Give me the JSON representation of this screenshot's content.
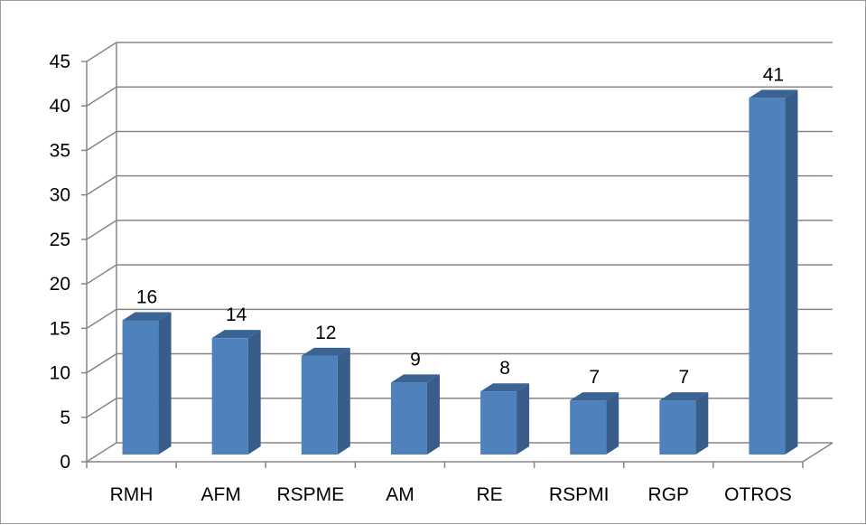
{
  "chart_data": {
    "type": "bar",
    "title": "",
    "xlabel": "",
    "ylabel": "",
    "categories": [
      "RMH",
      "AFM",
      "RSPME",
      "AM",
      "RE",
      "RSPMI",
      "RGP",
      "OTROS"
    ],
    "values": [
      16,
      14,
      12,
      9,
      8,
      7,
      7,
      41
    ],
    "data_labels": [
      "16",
      "14",
      "12",
      "9",
      "8",
      "7",
      "7",
      "41"
    ],
    "ylim": [
      0,
      45
    ],
    "yticks": [
      "0",
      "5",
      "10",
      "15",
      "20",
      "25",
      "30",
      "35",
      "40",
      "45"
    ],
    "grid": true,
    "legend": "none",
    "style": "3d-column",
    "colors": {
      "bar_front": "#4f81bd",
      "bar_side": "#385d8a",
      "bar_top": "#3b6394",
      "gridline": "#868686"
    }
  }
}
